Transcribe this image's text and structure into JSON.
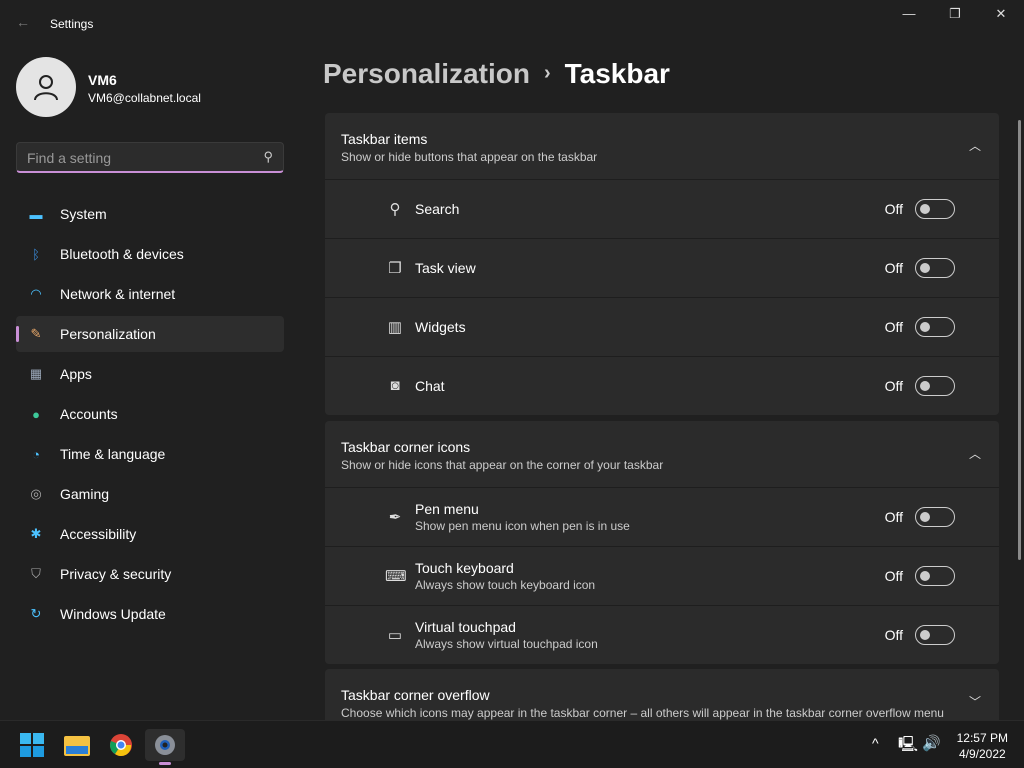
{
  "window": {
    "title": "Settings",
    "minimize": "—",
    "maximize": "❐",
    "close": "✕"
  },
  "user": {
    "name": "VM6",
    "email": "VM6@collabnet.local"
  },
  "search": {
    "placeholder": "Find a setting"
  },
  "nav": [
    {
      "label": "System",
      "icon": "monitor-icon",
      "glyph": "▬",
      "color": "#4cc2ff"
    },
    {
      "label": "Bluetooth & devices",
      "icon": "bluetooth-icon",
      "glyph": "ᛒ",
      "color": "#3b8fe0"
    },
    {
      "label": "Network & internet",
      "icon": "wifi-icon",
      "glyph": "◠",
      "color": "#4cc2ff"
    },
    {
      "label": "Personalization",
      "icon": "brush-icon",
      "glyph": "✎",
      "color": "#e8a86a",
      "selected": true
    },
    {
      "label": "Apps",
      "icon": "apps-icon",
      "glyph": "▦",
      "color": "#9aa7b8"
    },
    {
      "label": "Accounts",
      "icon": "person-icon",
      "glyph": "●",
      "color": "#3dc99a"
    },
    {
      "label": "Time & language",
      "icon": "globe-clock-icon",
      "glyph": "◔",
      "color": "#4cc2ff"
    },
    {
      "label": "Gaming",
      "icon": "gamepad-icon",
      "glyph": "◎",
      "color": "#aaa"
    },
    {
      "label": "Accessibility",
      "icon": "accessibility-icon",
      "glyph": "✱",
      "color": "#4cc2ff"
    },
    {
      "label": "Privacy & security",
      "icon": "shield-icon",
      "glyph": "⛉",
      "color": "#aaa"
    },
    {
      "label": "Windows Update",
      "icon": "update-icon",
      "glyph": "↻",
      "color": "#4cc2ff"
    }
  ],
  "breadcrumb": {
    "parent": "Personalization",
    "separator": "›",
    "current": "Taskbar"
  },
  "sections": [
    {
      "title": "Taskbar items",
      "desc": "Show or hide buttons that appear on the taskbar",
      "expanded": true,
      "items": [
        {
          "label": "Search",
          "icon": "search-icon",
          "glyph": "⚲",
          "state": "Off"
        },
        {
          "label": "Task view",
          "icon": "task-view-icon",
          "glyph": "❐",
          "state": "Off"
        },
        {
          "label": "Widgets",
          "icon": "widgets-icon",
          "glyph": "▥",
          "state": "Off"
        },
        {
          "label": "Chat",
          "icon": "chat-icon",
          "glyph": "◙",
          "state": "Off"
        }
      ]
    },
    {
      "title": "Taskbar corner icons",
      "desc": "Show or hide icons that appear on the corner of your taskbar",
      "expanded": true,
      "items": [
        {
          "label": "Pen menu",
          "sub": "Show pen menu icon when pen is in use",
          "icon": "pen-icon",
          "glyph": "✒",
          "state": "Off"
        },
        {
          "label": "Touch keyboard",
          "sub": "Always show touch keyboard icon",
          "icon": "keyboard-icon",
          "glyph": "⌨",
          "state": "Off"
        },
        {
          "label": "Virtual touchpad",
          "sub": "Always show virtual touchpad icon",
          "icon": "touchpad-icon",
          "glyph": "▭",
          "state": "Off"
        }
      ]
    },
    {
      "title": "Taskbar corner overflow",
      "desc": "Choose which icons may appear in the taskbar corner – all others will appear in the taskbar corner overflow menu",
      "expanded": false
    }
  ],
  "taskbar": {
    "time": "12:57 PM",
    "date": "4/9/2022"
  }
}
